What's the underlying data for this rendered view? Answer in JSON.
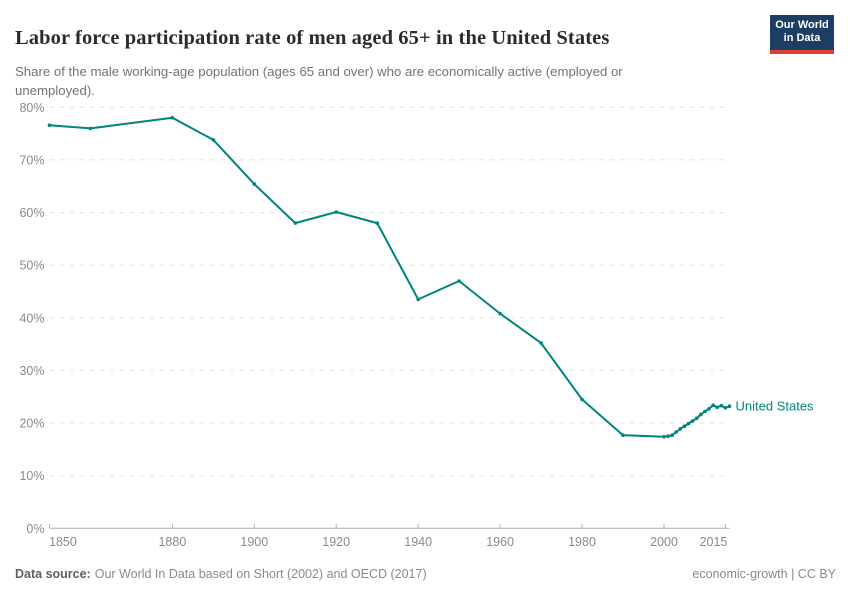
{
  "header": {
    "title": "Labor force participation rate of men aged 65+ in the United States",
    "subtitle": "Share of the male working-age population (ages 65 and over) who are economically active (employed or unemployed).",
    "logo": {
      "line1": "Our World",
      "line2": "in Data",
      "bg_color": "#1d3d63",
      "accent_color": "#dc3e32"
    }
  },
  "chart_data": {
    "type": "line",
    "title": "Labor force participation rate of men aged 65+ in the United States",
    "xlabel": "",
    "ylabel": "",
    "xlim": [
      1850,
      2016
    ],
    "ylim": [
      0,
      80
    ],
    "x_ticks": [
      1850,
      1880,
      1900,
      1920,
      1940,
      1960,
      1980,
      2000,
      2015
    ],
    "y_ticks": [
      0,
      10,
      20,
      30,
      40,
      50,
      60,
      70,
      80
    ],
    "y_tick_suffix": "%",
    "grid": "horizontal-dashed",
    "legend_position": "end-of-line",
    "colors": {
      "line": "#00847e",
      "grid": "#e4e4e4",
      "axis": "#b0b0b0",
      "tick_label": "#8a8a8a"
    },
    "series": [
      {
        "name": "United States",
        "points": [
          [
            1850,
            76.6
          ],
          [
            1860,
            76.0
          ],
          [
            1880,
            78.0
          ],
          [
            1890,
            73.8
          ],
          [
            1900,
            65.4
          ],
          [
            1910,
            58.0
          ],
          [
            1920,
            60.1
          ],
          [
            1930,
            58.0
          ],
          [
            1940,
            43.5
          ],
          [
            1950,
            47.0
          ],
          [
            1960,
            40.8
          ],
          [
            1970,
            35.2
          ],
          [
            1980,
            24.5
          ],
          [
            1990,
            17.7
          ],
          [
            2000,
            17.4
          ],
          [
            2001,
            17.5
          ],
          [
            2002,
            17.7
          ],
          [
            2003,
            18.3
          ],
          [
            2004,
            18.9
          ],
          [
            2005,
            19.4
          ],
          [
            2006,
            19.9
          ],
          [
            2007,
            20.4
          ],
          [
            2008,
            20.9
          ],
          [
            2009,
            21.6
          ],
          [
            2010,
            22.2
          ],
          [
            2011,
            22.7
          ],
          [
            2012,
            23.4
          ],
          [
            2013,
            23.0
          ],
          [
            2014,
            23.3
          ],
          [
            2015,
            22.9
          ],
          [
            2016,
            23.2
          ]
        ]
      }
    ]
  },
  "footer": {
    "label": "Data source:",
    "text": "Our World In Data based on Short (2002) and OECD (2017)",
    "right": "economic-growth | CC BY"
  }
}
